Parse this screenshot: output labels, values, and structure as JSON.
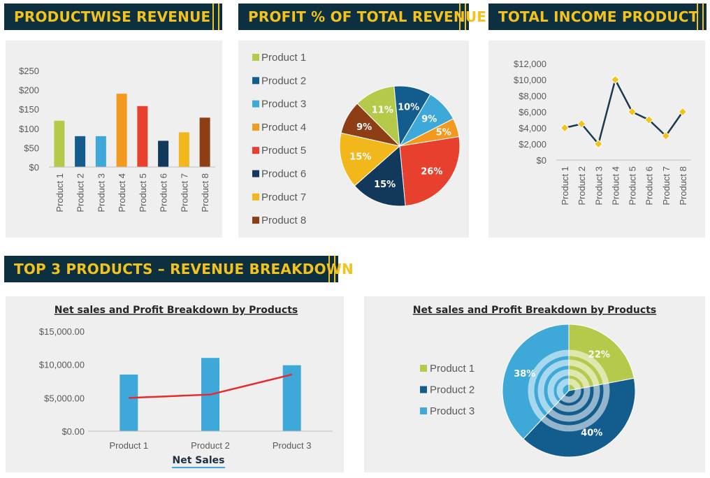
{
  "headers": {
    "productwise_revenue": "PRODUCTWISE REVENUE",
    "profit_pct": "PROFIT % OF TOTAL REVENUE",
    "total_income": "TOTAL INCOME PRODUCT",
    "top3": "TOP 3 PRODUCTS – REVENUE BREAKDOWN"
  },
  "colors": {
    "header_bg": "#0d3040",
    "header_text": "#f3c21c",
    "panel_bg": "#efefef",
    "product_palette": [
      "#b5c94a",
      "#125c8e",
      "#3ea9d8",
      "#f39a1e",
      "#e8402f",
      "#12395c",
      "#f2b71a",
      "#8e3e14"
    ],
    "line": "#1a3a4f",
    "marker": "#f3c21c",
    "red_line": "#e52b2b"
  },
  "chart_data": [
    {
      "id": "productwise_revenue",
      "type": "bar",
      "categories": [
        "Product 1",
        "Product 2",
        "Product 3",
        "Product 4",
        "Product 5",
        "Product 6",
        "Product 7",
        "Product 8"
      ],
      "values": [
        120,
        80,
        80,
        190,
        158,
        68,
        90,
        128
      ],
      "ylim": [
        0,
        250
      ],
      "yticks": [
        "$0",
        "$50",
        "$100",
        "$150",
        "$200",
        "$250"
      ],
      "grid": false
    },
    {
      "id": "profit_pct",
      "type": "pie",
      "labels": [
        "Product 1",
        "Product 2",
        "Product 3",
        "Product 4",
        "Product 5",
        "Product 6",
        "Product 7",
        "Product 8"
      ],
      "values": [
        11,
        10,
        9,
        5,
        26,
        15,
        15,
        9
      ],
      "value_labels": [
        "11%",
        "10%",
        "9%",
        "5%",
        "26%",
        "15%",
        "15%",
        "9%"
      ],
      "legend_position": "left"
    },
    {
      "id": "total_income",
      "type": "line",
      "categories": [
        "Product 1",
        "Product 2",
        "Product 3",
        "Product 4",
        "Product 5",
        "Product 6",
        "Product 7",
        "Product 8"
      ],
      "values": [
        4000,
        4500,
        2000,
        10000,
        6000,
        5000,
        3000,
        6000
      ],
      "ylim": [
        0,
        12000
      ],
      "yticks": [
        "$0",
        "$2,000",
        "$4,000",
        "$6,000",
        "$8,000",
        "$10,000",
        "$12,000"
      ],
      "grid": false
    },
    {
      "id": "top3_bar_line",
      "type": "bar",
      "title": "Net sales and Profit Breakdown by Products",
      "xlabel": "Net Sales",
      "categories": [
        "Product 1",
        "Product 2",
        "Product 3"
      ],
      "series": [
        {
          "values": [
            8500,
            11000,
            9900
          ],
          "kind": "bar"
        },
        {
          "values": [
            5000,
            5500,
            8500
          ],
          "kind": "line"
        }
      ],
      "ylim": [
        0,
        15000
      ],
      "yticks": [
        "$0.00",
        "$5,000.00",
        "$10,000.00",
        "$15,000.00"
      ]
    },
    {
      "id": "top3_pie",
      "type": "pie",
      "title": "Net sales and Profit Breakdown by Products",
      "labels": [
        "Product 1",
        "Product 2",
        "Product 3"
      ],
      "values": [
        22,
        40,
        38
      ],
      "value_labels": [
        "22%",
        "40%",
        "38%"
      ],
      "legend_position": "left"
    }
  ]
}
